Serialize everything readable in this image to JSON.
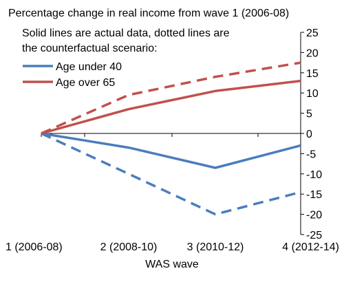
{
  "chart_data": {
    "type": "line",
    "title": "Percentage change in real income from wave 1 (2006-08)",
    "note": [
      "Solid lines are actual data, dotted lines are",
      "the counterfactual scenario:"
    ],
    "xlabel": "WAS wave",
    "ylabel": "",
    "categories": [
      "1 (2006-08)",
      "2 (2008-10)",
      "3 (2010-12)",
      "4 (2012-14)"
    ],
    "ylim": [
      -25,
      25
    ],
    "y_ticks": [
      25,
      20,
      15,
      10,
      5,
      0,
      -5,
      -10,
      -15,
      -20,
      -25
    ],
    "y_axis_position": "right",
    "legend_position": "top-left",
    "grid": false,
    "series": [
      {
        "name": "Age under 40",
        "style": "solid",
        "color": "#4a7dbc",
        "values": [
          0,
          -3.5,
          -8.5,
          -3
        ]
      },
      {
        "name": "Age over 65",
        "style": "solid",
        "color": "#c0504d",
        "values": [
          0,
          6,
          10.5,
          13
        ]
      },
      {
        "style": "dashed",
        "color": "#4a7dbc",
        "values": [
          0,
          -10,
          -20,
          -14.5
        ]
      },
      {
        "style": "dashed",
        "color": "#c0504d",
        "values": [
          0,
          9.5,
          14,
          17.5
        ]
      }
    ]
  }
}
